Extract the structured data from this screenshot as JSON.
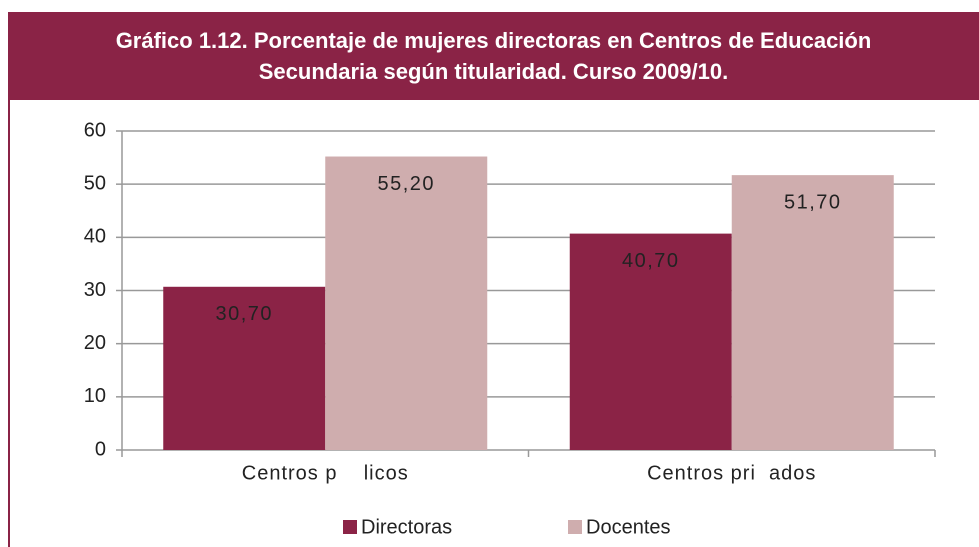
{
  "chart_data": {
    "type": "bar",
    "title": "Gráfico 1.12. Porcentaje de mujeres directoras en Centros de Educación Secundaria según titularidad. Curso 2009/10.",
    "categories": [
      "Centros p    licos",
      "Centros pri  ados"
    ],
    "series": [
      {
        "name": "Directoras",
        "color": "#8b2346",
        "values": [
          30.7,
          40.7
        ],
        "value_labels": [
          "30,70",
          "40,70"
        ]
      },
      {
        "name": "Docentes",
        "color": "#cfadae",
        "values": [
          55.2,
          51.7
        ],
        "value_labels": [
          "55,20",
          "51,70"
        ]
      }
    ],
    "ylim": [
      0,
      60
    ],
    "yticks": [
      0,
      10,
      20,
      30,
      40,
      50,
      60
    ],
    "grid": true,
    "legend": "bottom"
  }
}
